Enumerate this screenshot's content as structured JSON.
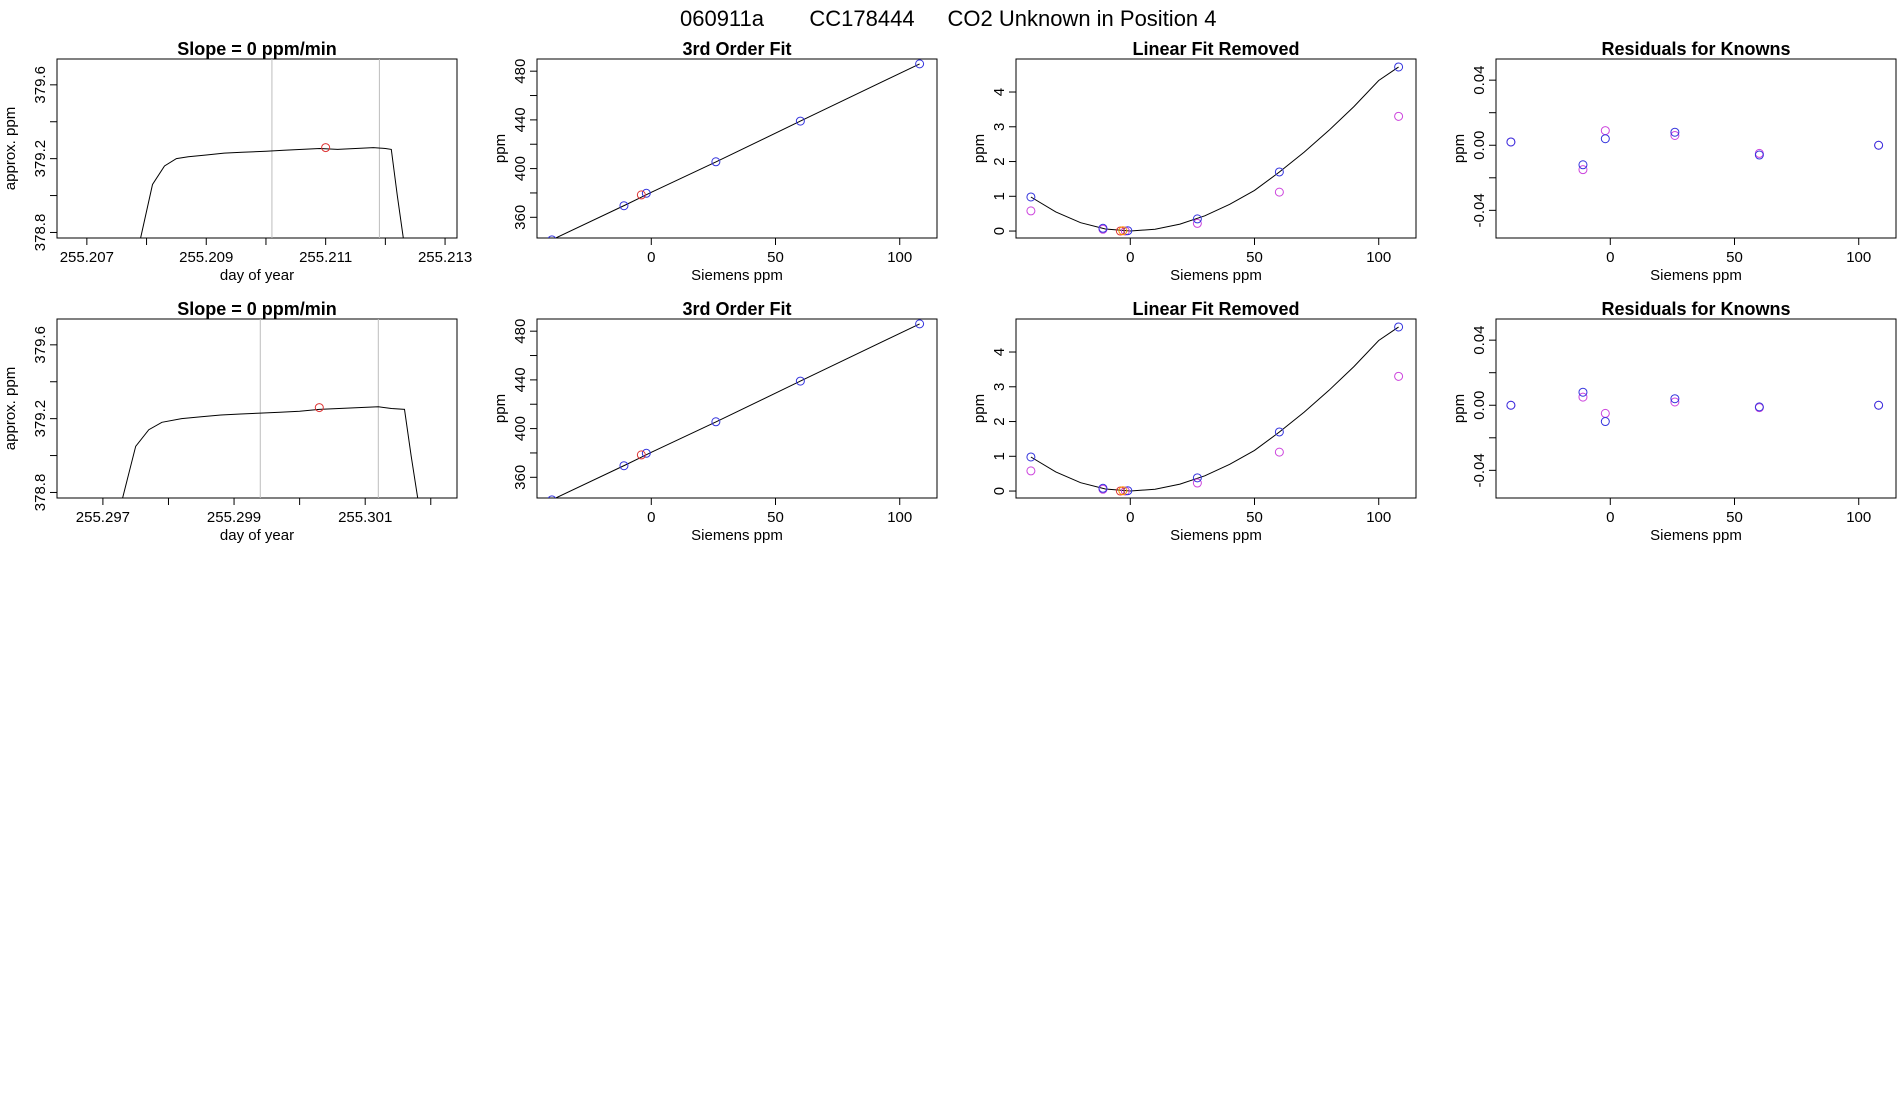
{
  "main_title": {
    "run_id": "060911a",
    "tank_id": "CC178444",
    "description": "CO2 Unknown in Position  4"
  },
  "colors": {
    "standards": "#3333dd",
    "residual_alt": "#cc44dd",
    "unknown": "#dd3333",
    "unknown_alt": "#ff9900",
    "grid_line": "#bdbdbd",
    "line": "#000000"
  },
  "chart_data": [
    {
      "id": "row1-timeseries",
      "type": "line",
      "title": "Slope =  0  ppm/min",
      "xlabel": "day of year",
      "ylabel": "approx. ppm",
      "xlim": [
        255.2065,
        255.2132
      ],
      "ylim": [
        378.77,
        379.74
      ],
      "xticks": [
        255.207,
        255.208,
        255.209,
        255.21,
        255.211,
        255.212,
        255.213
      ],
      "xtick_labels": [
        "255.207",
        "",
        "255.209",
        "",
        "255.211",
        "",
        "255.213"
      ],
      "yticks": [
        378.8,
        379.0,
        379.2,
        379.4,
        379.6
      ],
      "ytick_labels": [
        "378.8",
        "",
        "379.2",
        "",
        "379.6"
      ],
      "vlines": [
        255.2101,
        255.2119
      ],
      "series_x": [
        255.2079,
        255.2081,
        255.2083,
        255.2085,
        255.2087,
        255.209,
        255.2093,
        255.2096,
        255.21,
        255.2103,
        255.2106,
        255.2109,
        255.2112,
        255.2115,
        255.2118,
        255.212,
        255.2121,
        255.2122,
        255.2123
      ],
      "series_y": [
        378.77,
        379.06,
        379.16,
        379.2,
        379.21,
        379.22,
        379.23,
        379.235,
        379.24,
        379.245,
        379.25,
        379.255,
        379.25,
        379.255,
        379.26,
        379.255,
        379.25,
        379.0,
        378.77
      ],
      "unknown_point": {
        "x": 255.211,
        "y": 379.26
      }
    },
    {
      "id": "row1-fit",
      "type": "scatter",
      "title": "3rd Order Fit",
      "xlabel": "Siemens ppm",
      "ylabel": "ppm",
      "xlim": [
        -46,
        115
      ],
      "ylim": [
        343,
        490
      ],
      "xticks": [
        0,
        50,
        100
      ],
      "xtick_labels": [
        "0",
        "50",
        "100"
      ],
      "yticks": [
        360,
        380,
        400,
        420,
        440,
        460,
        480
      ],
      "ytick_labels": [
        "360",
        "",
        "400",
        "",
        "440",
        "",
        "480"
      ],
      "fit_x": [
        -40,
        -10,
        0,
        26,
        60,
        108
      ],
      "fit_y": [
        341.5,
        370.5,
        380.5,
        405.5,
        439,
        486
      ],
      "standards_x": [
        -40,
        -11,
        -2,
        26,
        60,
        108
      ],
      "standards_y": [
        341.5,
        369.5,
        379.7,
        405.6,
        439,
        486
      ],
      "unknown_points": [
        {
          "x": -4,
          "y": 378.4
        }
      ]
    },
    {
      "id": "row1-linfit",
      "type": "scatter",
      "title": "Linear Fit Removed",
      "xlabel": "Siemens ppm",
      "ylabel": "ppm",
      "xlim": [
        -46,
        115
      ],
      "ylim": [
        -0.2,
        4.95
      ],
      "xticks": [
        0,
        50,
        100
      ],
      "xtick_labels": [
        "0",
        "50",
        "100"
      ],
      "yticks": [
        0,
        1,
        2,
        3,
        4
      ],
      "ytick_labels": [
        "0",
        "1",
        "2",
        "3",
        "4"
      ],
      "curve_x": [
        -40,
        -30,
        -20,
        -10,
        0,
        10,
        20,
        30,
        40,
        50,
        60,
        70,
        80,
        90,
        100,
        108
      ],
      "curve_y": [
        0.98,
        0.55,
        0.24,
        0.06,
        0.0,
        0.05,
        0.2,
        0.44,
        0.77,
        1.17,
        1.7,
        2.27,
        2.9,
        3.58,
        4.33,
        4.72
      ],
      "standards_x": [
        -40,
        -11,
        -1,
        27,
        60,
        108
      ],
      "standards_y": [
        0.98,
        0.08,
        0.01,
        0.35,
        1.7,
        4.72
      ],
      "alt_x": [
        -40,
        -11,
        -2,
        27,
        60,
        108
      ],
      "alt_y": [
        0.58,
        0.05,
        0.0,
        0.22,
        1.12,
        3.3
      ],
      "unknown_points": [
        {
          "x": -4,
          "y": 0.0
        },
        {
          "x": -3,
          "y": 0.01
        }
      ]
    },
    {
      "id": "row1-residuals",
      "type": "scatter",
      "title": "Residuals for Knowns",
      "xlabel": "Siemens ppm",
      "ylabel": "ppm",
      "xlim": [
        -46,
        115
      ],
      "ylim": [
        -0.057,
        0.053
      ],
      "xticks": [
        0,
        50,
        100
      ],
      "xtick_labels": [
        "0",
        "50",
        "100"
      ],
      "yticks": [
        -0.04,
        -0.02,
        0.0,
        0.02,
        0.04
      ],
      "ytick_labels": [
        "-0.04",
        "",
        "0.00",
        "",
        "0.04"
      ],
      "standards_x": [
        -40,
        -11,
        -2,
        26,
        60,
        108
      ],
      "standards_y": [
        0.002,
        -0.012,
        0.004,
        0.008,
        -0.006,
        0.0
      ],
      "alt_x": [
        -40,
        -11,
        -2,
        26,
        60,
        108
      ],
      "alt_y": [
        0.002,
        -0.015,
        0.009,
        0.006,
        -0.005,
        0.0
      ]
    },
    {
      "id": "row2-timeseries",
      "type": "line",
      "title": "Slope =  0  ppm/min",
      "xlabel": "day of year",
      "ylabel": "approx. ppm",
      "xlim": [
        255.2963,
        255.3024
      ],
      "ylim": [
        378.77,
        379.74
      ],
      "xticks": [
        255.297,
        255.298,
        255.299,
        255.3,
        255.301,
        255.302
      ],
      "xtick_labels": [
        "255.297",
        "",
        "255.299",
        "",
        "255.301",
        ""
      ],
      "yticks": [
        378.8,
        379.0,
        379.2,
        379.4,
        379.6
      ],
      "ytick_labels": [
        "378.8",
        "",
        "379.2",
        "",
        "379.6"
      ],
      "vlines": [
        255.2994,
        255.3012
      ],
      "series_x": [
        255.2973,
        255.2975,
        255.2977,
        255.2979,
        255.2982,
        255.2985,
        255.2988,
        255.2991,
        255.2994,
        255.2997,
        255.3,
        255.3003,
        255.3006,
        255.3009,
        255.3012,
        255.3014,
        255.3016,
        255.3017,
        255.3018
      ],
      "series_y": [
        378.77,
        379.05,
        379.14,
        379.18,
        379.2,
        379.21,
        379.22,
        379.225,
        379.23,
        379.235,
        379.24,
        379.25,
        379.255,
        379.26,
        379.265,
        379.255,
        379.25,
        379.0,
        378.77
      ],
      "unknown_point": {
        "x": 255.3003,
        "y": 379.26
      }
    },
    {
      "id": "row2-fit",
      "type": "scatter",
      "title": "3rd Order Fit",
      "xlabel": "Siemens ppm",
      "ylabel": "ppm",
      "xlim": [
        -46,
        115
      ],
      "ylim": [
        343,
        490
      ],
      "xticks": [
        0,
        50,
        100
      ],
      "xtick_labels": [
        "0",
        "50",
        "100"
      ],
      "yticks": [
        360,
        380,
        400,
        420,
        440,
        460,
        480
      ],
      "ytick_labels": [
        "360",
        "",
        "400",
        "",
        "440",
        "",
        "480"
      ],
      "fit_x": [
        -40,
        -10,
        0,
        26,
        60,
        108
      ],
      "fit_y": [
        341.5,
        370.5,
        380.5,
        405.5,
        439,
        486
      ],
      "standards_x": [
        -40,
        -11,
        -2,
        26,
        60,
        108
      ],
      "standards_y": [
        341.5,
        369.5,
        379.7,
        405.6,
        439,
        486
      ],
      "unknown_points": [
        {
          "x": -4,
          "y": 378.4
        }
      ]
    },
    {
      "id": "row2-linfit",
      "type": "scatter",
      "title": "Linear Fit Removed",
      "xlabel": "Siemens ppm",
      "ylabel": "ppm",
      "xlim": [
        -46,
        115
      ],
      "ylim": [
        -0.2,
        4.95
      ],
      "xticks": [
        0,
        50,
        100
      ],
      "xtick_labels": [
        "0",
        "50",
        "100"
      ],
      "yticks": [
        0,
        1,
        2,
        3,
        4
      ],
      "ytick_labels": [
        "0",
        "1",
        "2",
        "3",
        "4"
      ],
      "curve_x": [
        -40,
        -30,
        -20,
        -10,
        0,
        10,
        20,
        30,
        40,
        50,
        60,
        70,
        80,
        90,
        100,
        108
      ],
      "curve_y": [
        0.98,
        0.55,
        0.24,
        0.06,
        0.0,
        0.05,
        0.2,
        0.44,
        0.77,
        1.17,
        1.7,
        2.27,
        2.9,
        3.58,
        4.33,
        4.72
      ],
      "standards_x": [
        -40,
        -11,
        -1,
        27,
        60,
        108
      ],
      "standards_y": [
        0.98,
        0.08,
        0.01,
        0.38,
        1.7,
        4.72
      ],
      "alt_x": [
        -40,
        -11,
        -2,
        27,
        60,
        108
      ],
      "alt_y": [
        0.58,
        0.05,
        0.0,
        0.23,
        1.12,
        3.3
      ],
      "unknown_points": [
        {
          "x": -4,
          "y": 0.0
        },
        {
          "x": -3,
          "y": 0.01
        }
      ]
    },
    {
      "id": "row2-residuals",
      "type": "scatter",
      "title": "Residuals for Knowns",
      "xlabel": "Siemens ppm",
      "ylabel": "ppm",
      "xlim": [
        -46,
        115
      ],
      "ylim": [
        -0.057,
        0.053
      ],
      "xticks": [
        0,
        50,
        100
      ],
      "xtick_labels": [
        "0",
        "50",
        "100"
      ],
      "yticks": [
        -0.04,
        -0.02,
        0.0,
        0.02,
        0.04
      ],
      "ytick_labels": [
        "-0.04",
        "",
        "0.00",
        "",
        "0.04"
      ],
      "standards_x": [
        -40,
        -11,
        -2,
        26,
        60,
        108
      ],
      "standards_y": [
        0.0,
        0.008,
        -0.01,
        0.004,
        -0.001,
        0.0
      ],
      "alt_x": [
        -40,
        -11,
        -2,
        26,
        60,
        108
      ],
      "alt_y": [
        0.0,
        0.005,
        -0.005,
        0.002,
        -0.0015,
        0.0
      ]
    }
  ]
}
